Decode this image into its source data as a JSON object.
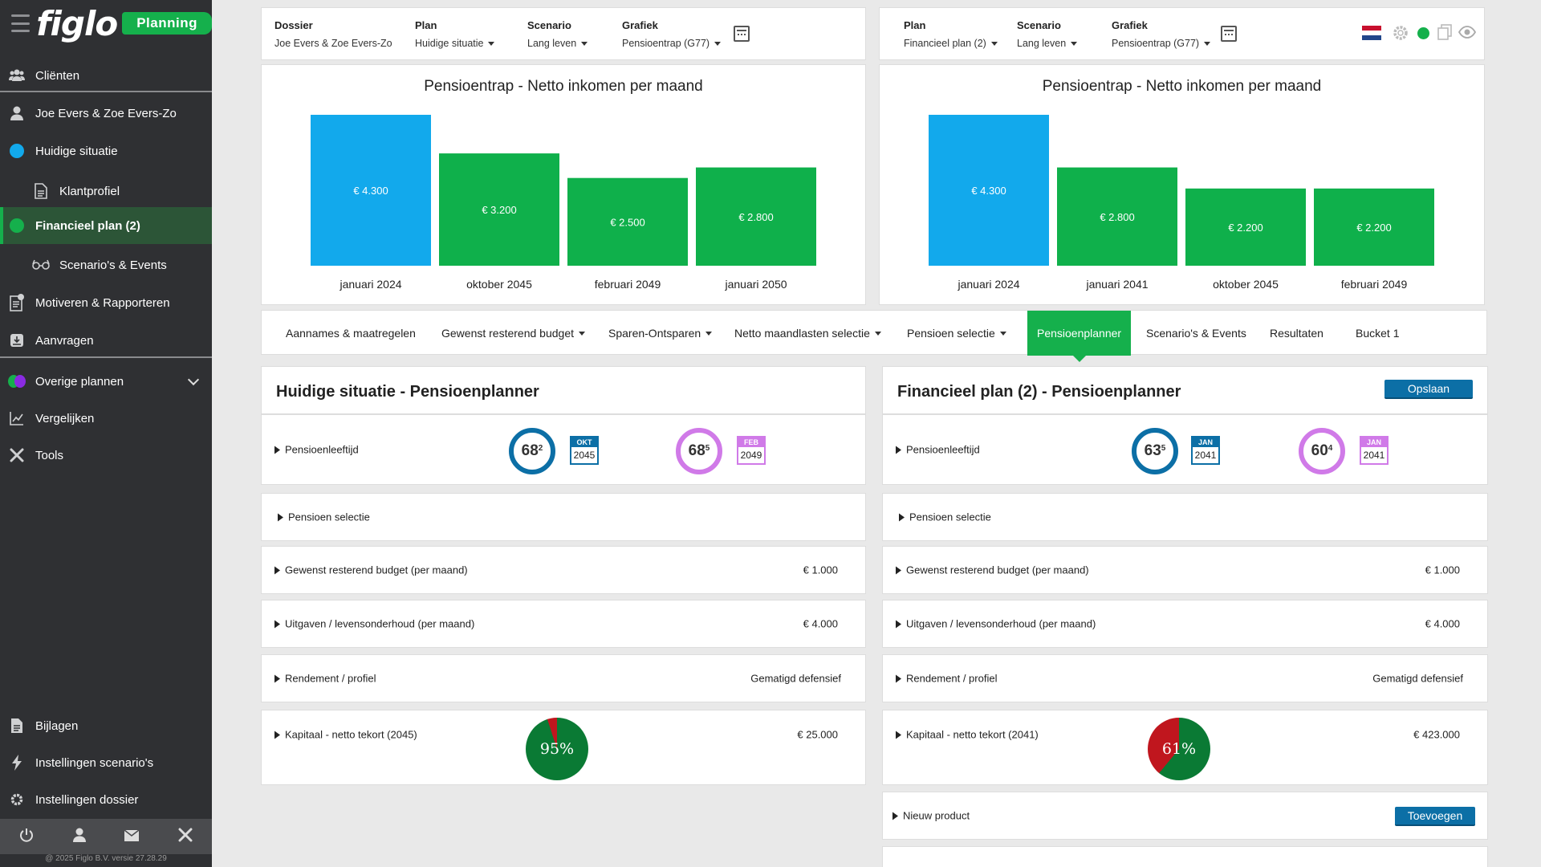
{
  "sidebar": {
    "brand": "figlo",
    "badge": "Planning",
    "items": [
      {
        "label": "Cliënten"
      },
      {
        "label": "Joe Evers & Zoe Evers-Zo"
      },
      {
        "label": "Huidige situatie"
      },
      {
        "label": "Klantprofiel"
      },
      {
        "label": "Financieel plan (2)"
      },
      {
        "label": "Scenario's & Events"
      },
      {
        "label": "Motiveren & Rapporteren"
      },
      {
        "label": "Aanvragen"
      },
      {
        "label": "Overige plannen"
      },
      {
        "label": "Vergelijken"
      },
      {
        "label": "Tools"
      },
      {
        "label": "Bijlagen"
      },
      {
        "label": "Instellingen scenario's"
      },
      {
        "label": "Instellingen dossier"
      }
    ],
    "copyright": "@ 2025 Figlo B.V. versie 27.28.29"
  },
  "topbar_left": {
    "dossier_label": "Dossier",
    "dossier_value": "Joe Evers & Zoe Evers-Zo",
    "plan_label": "Plan",
    "plan_value": "Huidige situatie",
    "scenario_label": "Scenario",
    "scenario_value": "Lang leven",
    "grafiek_label": "Grafiek",
    "grafiek_value": "Pensioentrap (G77)"
  },
  "topbar_right": {
    "plan_label": "Plan",
    "plan_value": "Financieel plan (2)",
    "scenario_label": "Scenario",
    "scenario_value": "Lang leven",
    "grafiek_label": "Grafiek",
    "grafiek_value": "Pensioentrap (G77)"
  },
  "colors": {
    "blue": "#12a9ec",
    "green": "#0fb04b",
    "accent": "#15b04c",
    "purple": "#d07ae8",
    "navy": "#0c6fa6"
  },
  "chart_data": [
    {
      "type": "bar",
      "title": "Pensioentrap - Netto inkomen per maand",
      "categories": [
        "januari 2024",
        "oktober 2045",
        "februari 2049",
        "januari 2050"
      ],
      "values": [
        4300,
        3200,
        2500,
        2800
      ],
      "value_labels": [
        "€ 4.300",
        "€ 3.200",
        "€ 2.500",
        "€ 2.800"
      ],
      "colors": [
        "#12a9ec",
        "#0fb04b",
        "#0fb04b",
        "#0fb04b"
      ],
      "ylim": [
        0,
        4300
      ]
    },
    {
      "type": "bar",
      "title": "Pensioentrap - Netto inkomen per maand",
      "categories": [
        "januari 2024",
        "januari 2041",
        "oktober 2045",
        "februari 2049"
      ],
      "values": [
        4300,
        2800,
        2200,
        2200
      ],
      "value_labels": [
        "€ 4.300",
        "€ 2.800",
        "€ 2.200",
        "€ 2.200"
      ],
      "colors": [
        "#12a9ec",
        "#0fb04b",
        "#0fb04b",
        "#0fb04b"
      ],
      "ylim": [
        0,
        4300
      ]
    }
  ],
  "tabs": [
    {
      "label": "Aannames & maatregelen"
    },
    {
      "label": "Gewenst resterend budget"
    },
    {
      "label": "Sparen-Ontsparen"
    },
    {
      "label": "Netto maandlasten selectie"
    },
    {
      "label": "Pensioen selectie"
    },
    {
      "label": "Pensioenplanner"
    },
    {
      "label": "Scenario's & Events"
    },
    {
      "label": "Resultaten"
    },
    {
      "label": "Bucket 1"
    }
  ],
  "left_planner": {
    "title": "Huidige situatie - Pensioenplanner",
    "rows": {
      "pensioenleeftijd": "Pensioenleeftijd",
      "pensioen_selectie": "Pensioen selectie",
      "budget": "Gewenst resterend budget (per maand)",
      "budget_value": "€ 1.000",
      "uitgaven": "Uitgaven / levensonderhoud (per maand)",
      "uitgaven_value": "€ 4.000",
      "rendement": "Rendement / profiel",
      "rendement_value": "Gematigd defensief",
      "kapitaal": "Kapitaal - netto tekort (2045)",
      "kapitaal_value": "€ 25.000"
    },
    "person1_age": "68",
    "person1_months": "2",
    "person1_month": "OKT",
    "person1_year": "2045",
    "person2_age": "68",
    "person2_months": "5",
    "person2_month": "FEB",
    "person2_year": "2049",
    "pie_percent": "95%",
    "pie_fraction": 0.95
  },
  "right_planner": {
    "title": "Financieel plan (2) - Pensioenplanner",
    "save_label": "Opslaan",
    "rows": {
      "pensioenleeftijd": "Pensioenleeftijd",
      "pensioen_selectie": "Pensioen selectie",
      "budget": "Gewenst resterend budget (per maand)",
      "budget_value": "€ 1.000",
      "uitgaven": "Uitgaven / levensonderhoud (per maand)",
      "uitgaven_value": "€ 4.000",
      "rendement": "Rendement / profiel",
      "rendement_value": "Gematigd defensief",
      "kapitaal": "Kapitaal - netto tekort (2041)",
      "kapitaal_value": "€ 423.000",
      "nieuw_product": "Nieuw product",
      "add_label": "Toevoegen"
    },
    "person1_age": "63",
    "person1_months": "5",
    "person1_month": "JAN",
    "person1_year": "2041",
    "person2_age": "60",
    "person2_months": "4",
    "person2_month": "JAN",
    "person2_year": "2041",
    "pie_percent": "61%",
    "pie_fraction": 0.61
  }
}
